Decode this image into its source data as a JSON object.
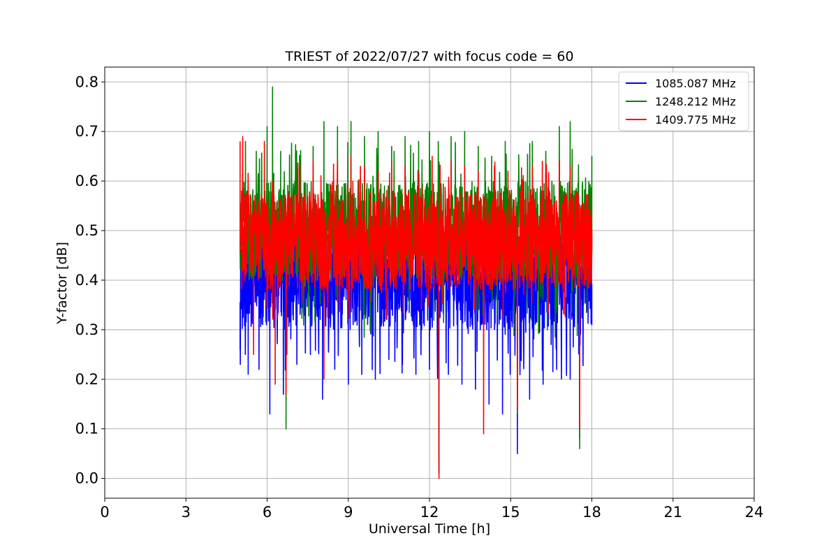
{
  "chart_data": {
    "type": "line",
    "title": "TRIEST of 2022/07/27 with focus code = 60",
    "xlabel": "Universal Time [h]",
    "ylabel": "Y-factor [dB]",
    "xlim": [
      0,
      24
    ],
    "ylim": [
      -0.04,
      0.83
    ],
    "xticks": [
      0,
      3,
      6,
      9,
      12,
      15,
      18,
      21,
      24
    ],
    "yticks": [
      0.0,
      0.1,
      0.2,
      0.3,
      0.4,
      0.5,
      0.6,
      0.7,
      0.8
    ],
    "xtick_labels": [
      "0",
      "3",
      "6",
      "9",
      "12",
      "15",
      "18",
      "21",
      "24"
    ],
    "ytick_labels": [
      "0.0",
      "0.1",
      "0.2",
      "0.3",
      "0.4",
      "0.5",
      "0.6",
      "0.7",
      "0.8"
    ],
    "grid": true,
    "legend_position": "top-right",
    "x_range_data": [
      5.0,
      18.0
    ],
    "series": [
      {
        "name": "1085.087 MHz",
        "color": "#0000ff",
        "x": [
          5.0,
          5.05,
          5.3,
          5.7,
          6.1,
          6.6,
          7.1,
          7.6,
          8.05,
          8.5,
          9.0,
          9.5,
          10.0,
          10.5,
          11.0,
          11.5,
          12.0,
          12.35,
          12.7,
          13.2,
          13.7,
          14.2,
          14.7,
          15.25,
          15.7,
          16.2,
          16.7,
          17.2,
          17.55,
          18.0
        ],
        "values": [
          0.26,
          0.46,
          0.21,
          0.22,
          0.13,
          0.17,
          0.23,
          0.25,
          0.16,
          0.22,
          0.19,
          0.21,
          0.2,
          0.24,
          0.23,
          0.21,
          0.22,
          0.01,
          0.21,
          0.19,
          0.18,
          0.15,
          0.13,
          0.05,
          0.16,
          0.19,
          0.22,
          0.2,
          0.08,
          0.31
        ]
      },
      {
        "name": "1248.212 MHz",
        "color": "#008000",
        "x": [
          5.0,
          5.2,
          5.6,
          6.0,
          6.2,
          6.5,
          6.7,
          7.2,
          7.7,
          8.1,
          8.6,
          9.1,
          9.6,
          10.1,
          10.6,
          11.1,
          11.6,
          12.0,
          12.35,
          12.8,
          13.3,
          13.8,
          14.3,
          14.8,
          15.25,
          15.8,
          16.3,
          16.8,
          17.2,
          17.55,
          18.0
        ],
        "values": [
          0.55,
          0.68,
          0.66,
          0.71,
          0.79,
          0.66,
          0.1,
          0.65,
          0.67,
          0.72,
          0.71,
          0.72,
          0.69,
          0.7,
          0.67,
          0.69,
          0.68,
          0.7,
          0.02,
          0.69,
          0.7,
          0.67,
          0.65,
          0.68,
          0.13,
          0.68,
          0.66,
          0.71,
          0.72,
          0.06,
          0.65
        ]
      },
      {
        "name": "1409.775 MHz",
        "color": "#ff0000",
        "x": [
          5.0,
          5.1,
          5.5,
          5.9,
          6.3,
          6.7,
          7.2,
          7.7,
          8.1,
          8.6,
          9.1,
          9.6,
          10.1,
          10.6,
          11.1,
          11.6,
          12.1,
          12.35,
          12.8,
          13.3,
          13.8,
          14.0,
          14.4,
          14.9,
          15.25,
          15.8,
          16.3,
          16.8,
          17.2,
          17.55,
          18.0
        ],
        "values": [
          0.68,
          0.69,
          0.25,
          0.68,
          0.19,
          0.17,
          0.63,
          0.64,
          0.2,
          0.64,
          0.65,
          0.63,
          0.62,
          0.64,
          0.63,
          0.62,
          0.65,
          0.0,
          0.64,
          0.63,
          0.62,
          0.09,
          0.63,
          0.62,
          0.14,
          0.63,
          0.62,
          0.64,
          0.63,
          0.1,
          0.47
        ]
      }
    ]
  }
}
